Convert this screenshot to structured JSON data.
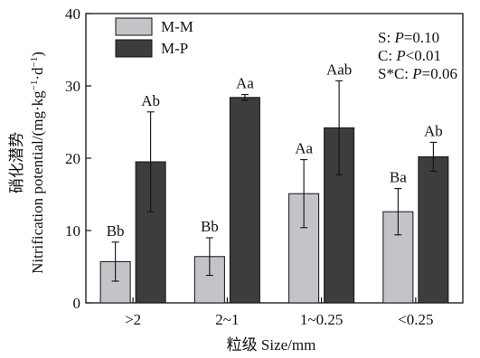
{
  "chart_data": {
    "type": "bar",
    "ylabel_cn": "硝化潜势",
    "ylabel_en": "Nitrification potential/(mg·kg",
    "ylabel_unit_sup1": "−1",
    "ylabel_mid": "·d",
    "ylabel_unit_sup2": "−1",
    "ylabel_close": ")",
    "xlabel": "粒级 Size/mm",
    "ylim": [
      0,
      40
    ],
    "yticks": [
      0,
      10,
      20,
      30,
      40
    ],
    "categories": [
      ">2",
      "2~1",
      "1~0.25",
      "<0.25"
    ],
    "series": [
      {
        "name": "M-M",
        "color": "#c4c4c8",
        "values": [
          5.7,
          6.4,
          15.1,
          12.6
        ],
        "errors": [
          2.7,
          2.6,
          4.7,
          3.2
        ],
        "labels": [
          "Bb",
          "Bb",
          "Aa",
          "Ba"
        ]
      },
      {
        "name": "M-P",
        "color": "#3d3d3f",
        "values": [
          19.5,
          28.4,
          24.2,
          20.2
        ],
        "errors": [
          6.9,
          0.4,
          6.5,
          2.0
        ],
        "labels": [
          "Ab",
          "Aa",
          "Aab",
          "Ab"
        ]
      }
    ],
    "stats": [
      {
        "prefix": "S: ",
        "p": "P",
        "rest": "=0.10"
      },
      {
        "prefix": "C: ",
        "p": "P",
        "rest": "<0.01"
      },
      {
        "prefix": "S*C: ",
        "p": "P",
        "rest": "=0.06"
      }
    ],
    "legend_position": "top-left",
    "grid": false
  }
}
